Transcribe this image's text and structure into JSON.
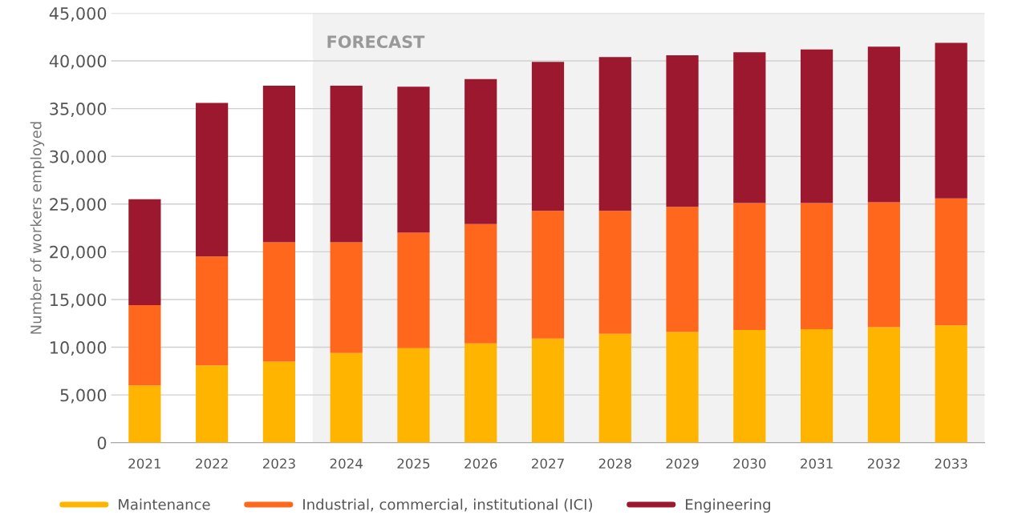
{
  "chart_data": {
    "type": "bar",
    "stacked": true,
    "ylabel": "Number of workers employed",
    "categories": [
      "2021",
      "2022",
      "2023",
      "2024",
      "2025",
      "2026",
      "2027",
      "2028",
      "2029",
      "2030",
      "2031",
      "2032",
      "2033"
    ],
    "series": [
      {
        "name": "Maintenance",
        "color": "#ffb400",
        "values": [
          6000,
          8100,
          8500,
          9400,
          9900,
          10400,
          10900,
          11400,
          11600,
          11800,
          11900,
          12100,
          12300
        ]
      },
      {
        "name": "Industrial, commercial, institutional (ICI)",
        "color": "#ff671d",
        "values": [
          8400,
          11400,
          12500,
          11600,
          12100,
          12500,
          13400,
          12900,
          13100,
          13300,
          13200,
          13100,
          13300
        ]
      },
      {
        "name": "Engineering",
        "color": "#9b182e",
        "values": [
          11100,
          16100,
          16400,
          16400,
          15300,
          15200,
          15600,
          16100,
          15900,
          15800,
          16100,
          16300,
          16300
        ]
      }
    ],
    "ylim": [
      0,
      45000
    ],
    "yticks": [
      0,
      {
        "value": 5000,
        "label": "5,000"
      },
      {
        "value": 10000,
        "label": "10,000"
      },
      {
        "value": 15000,
        "label": "15,000"
      },
      {
        "value": 20000,
        "label": "20,000"
      },
      {
        "value": 25000,
        "label": "25,000"
      },
      {
        "value": 30000,
        "label": "30,000"
      },
      {
        "value": 35000,
        "label": "35,000"
      },
      {
        "value": 40000,
        "label": "40,000"
      },
      {
        "value": 45000,
        "label": "45,000"
      }
    ],
    "bands": [
      {
        "axis": "x",
        "from": "2024",
        "to": "2033",
        "label": "FORECAST",
        "color": "#f2f2f2"
      }
    ],
    "grid": "y",
    "legend": "bottom"
  }
}
